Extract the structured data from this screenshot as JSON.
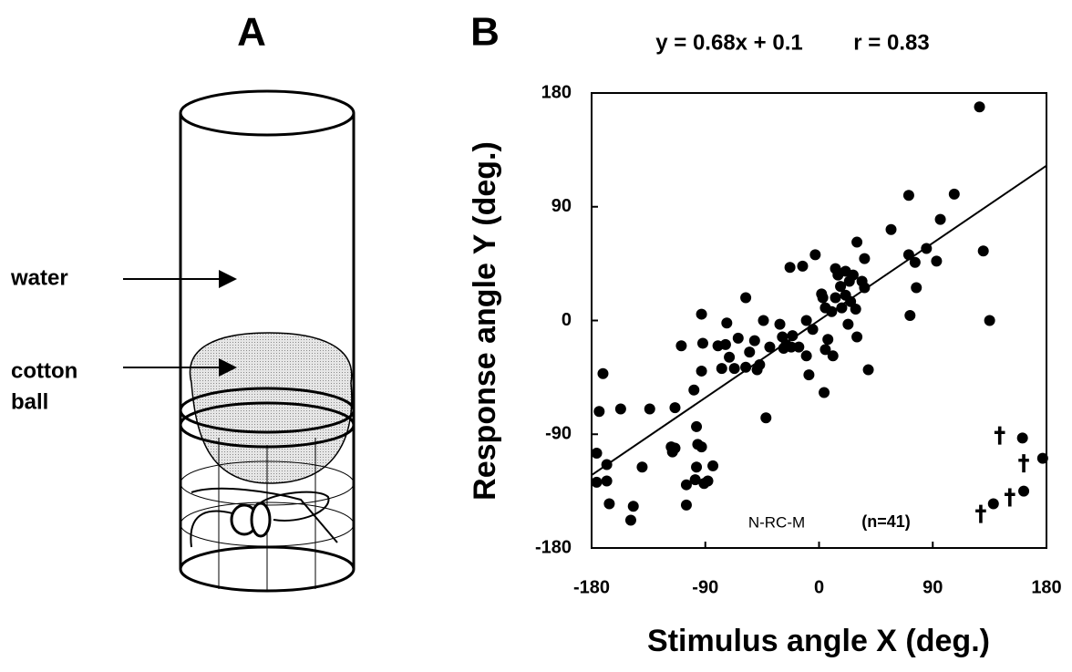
{
  "panels": [
    "A",
    "B"
  ],
  "diagram": {
    "water_label": "water",
    "cotton_label": [
      "cotton",
      "ball"
    ]
  },
  "chart_data": {
    "type": "scatter",
    "title": "y = 0.68x + 0.1",
    "subtitle": "r = 0.83",
    "fit": {
      "slope": 0.68,
      "intercept": 0.1
    },
    "x_label": "Stimulus angle X (deg.)",
    "y_label": "Response angle Y (deg.)",
    "annotation": "N-RC-M",
    "annotation_n": "(n=41)",
    "xlim": [
      -180,
      180
    ],
    "ylim": [
      -180,
      180
    ],
    "xticks": [
      -180,
      -90,
      0,
      90,
      180
    ],
    "yticks": [
      -180,
      -90,
      0,
      90,
      180
    ],
    "series": [
      {
        "marker": "circle",
        "color": "#000000",
        "x": [
          -171,
          -174,
          -157,
          -134,
          -114,
          -176,
          -168,
          -176,
          -168,
          -166,
          -147,
          -149,
          -140,
          -117,
          -116,
          -114,
          -105,
          -105,
          -98,
          -97,
          -96,
          -97,
          -93,
          -91,
          -88,
          -84,
          -99,
          -93,
          -93,
          -92,
          -109,
          -80,
          -73,
          -74,
          -71,
          -77,
          -67,
          -64,
          -58,
          -58,
          -55,
          -51,
          -49,
          -47,
          -44,
          -39,
          -42,
          -31,
          -29,
          -28,
          -23,
          -26,
          -22,
          -21,
          -13,
          -10,
          -16,
          -10,
          -8,
          -5,
          -3,
          2,
          3,
          5,
          4,
          5,
          7,
          10,
          13,
          11,
          13,
          15,
          17,
          18,
          21,
          24,
          21,
          23,
          25,
          29,
          27,
          30,
          34,
          30,
          36,
          39,
          36,
          57,
          71,
          72,
          71,
          76,
          77,
          85,
          93,
          96,
          107,
          130,
          135,
          127,
          138,
          161,
          162,
          177
        ],
        "y": [
          -42,
          -72,
          -70,
          -70,
          -69,
          -105,
          -114,
          -128,
          -127,
          -145,
          -147,
          -158,
          -116,
          -100,
          -104,
          -101,
          -130,
          -146,
          -126,
          -116,
          -98,
          -84,
          -100,
          -129,
          -127,
          -115,
          -55,
          -40,
          5,
          -18,
          -20,
          -20,
          -2,
          -19,
          -29,
          -38,
          -38,
          -14,
          18,
          -37,
          -25,
          -16,
          -39,
          -35,
          0,
          -21,
          -77,
          -3,
          -13,
          -22,
          42,
          -19,
          -21,
          -12,
          43,
          -28,
          -21,
          0,
          -43,
          -7,
          52,
          21,
          18,
          10,
          -57,
          -23,
          -15,
          7,
          18,
          -28,
          41,
          36,
          27,
          10,
          39,
          31,
          20,
          -3,
          15,
          9,
          36,
          62,
          31,
          -13,
          26,
          -39,
          49,
          72,
          99,
          4,
          52,
          46,
          26,
          57,
          47,
          80,
          100,
          55,
          0,
          169,
          -145,
          -93,
          -135,
          -109
        ]
      },
      {
        "marker": "dagger",
        "color": "#000000",
        "x": [
          128,
          151,
          143,
          162
        ],
        "y": [
          -153,
          -140,
          -91,
          -113
        ]
      }
    ]
  }
}
